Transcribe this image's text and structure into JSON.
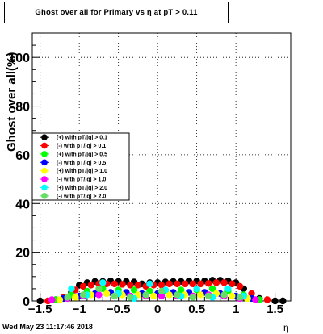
{
  "chart_data": {
    "type": "scatter",
    "title": "Ghost over all for Primary vs   η at pT > 0.11",
    "xlabel": "η",
    "ylabel": "Ghost over all(%)",
    "xlim": [
      -1.6,
      1.7
    ],
    "ylim": [
      0,
      110
    ],
    "grid": true,
    "legend_position": "left-middle",
    "x_ticks": [
      -1.5,
      -1,
      -0.5,
      0,
      0.5,
      1,
      1.5
    ],
    "x_tick_labels": [
      "−1.5",
      "−1",
      "−0.5",
      "0",
      "0.5",
      "1",
      "1.5"
    ],
    "y_ticks": [
      0,
      20,
      40,
      60,
      80,
      100
    ],
    "y_tick_labels": [
      "0",
      "20",
      "40",
      "60",
      "80",
      "100"
    ],
    "series": [
      {
        "name": "(+) with pT/|q| > 0.1",
        "color": "#000000",
        "marker": "circle",
        "x": [
          -1.5,
          -1.3,
          -1.1,
          -1.0,
          -0.9,
          -0.8,
          -0.7,
          -0.6,
          -0.5,
          -0.4,
          -0.3,
          -0.2,
          -0.1,
          0.0,
          0.1,
          0.2,
          0.3,
          0.4,
          0.5,
          0.6,
          0.7,
          0.8,
          0.9,
          1.0,
          1.1,
          1.3,
          1.5,
          1.6
        ],
        "y": [
          0,
          0.5,
          3.5,
          6.5,
          7.5,
          8,
          8,
          8.2,
          8,
          8,
          7.8,
          7,
          7.5,
          7.5,
          7.8,
          8,
          8,
          8.2,
          8.2,
          8.2,
          8.5,
          8.5,
          8.2,
          7.5,
          5,
          1,
          0,
          0
        ]
      },
      {
        "name": "(-) with pT/|q| > 0.1",
        "color": "#ff0000",
        "marker": "circle",
        "x": [
          -1.4,
          -1.2,
          -1.05,
          -0.95,
          -0.85,
          -0.75,
          -0.65,
          -0.55,
          -0.45,
          -0.35,
          -0.25,
          -0.15,
          -0.05,
          0.05,
          0.15,
          0.25,
          0.35,
          0.45,
          0.55,
          0.65,
          0.75,
          0.85,
          0.95,
          1.05,
          1.2,
          1.4
        ],
        "y": [
          0,
          1.5,
          4.5,
          6,
          6.5,
          7,
          7,
          7,
          6.8,
          6.5,
          6.5,
          6,
          6.5,
          6.5,
          7,
          7,
          7,
          7,
          7,
          7.2,
          7.5,
          7.5,
          7,
          6,
          3,
          0.5
        ]
      },
      {
        "name": "(+) with pT/|q| > 0.5",
        "color": "#00ff00",
        "marker": "circle",
        "x": [
          -1.3,
          -1.1,
          -0.9,
          -0.7,
          -0.5,
          -0.3,
          -0.1,
          0.1,
          0.3,
          0.5,
          0.7,
          0.9,
          1.1,
          1.3
        ],
        "y": [
          0.5,
          2.5,
          4,
          5,
          4.5,
          4.5,
          4,
          4,
          4.5,
          4.5,
          5,
          4,
          2.5,
          0.5
        ]
      },
      {
        "name": "(-) with pT/|q| > 0.5",
        "color": "#0000ff",
        "marker": "circle",
        "x": [
          -1.2,
          -1.0,
          -0.8,
          -0.6,
          -0.4,
          -0.2,
          0.0,
          0.2,
          0.4,
          0.6,
          0.8,
          1.0,
          1.2
        ],
        "y": [
          1,
          2,
          3,
          3.5,
          3.5,
          3,
          3,
          3.5,
          3.5,
          3.5,
          3,
          2,
          1
        ]
      },
      {
        "name": "(+) with pT/|q| > 1.0",
        "color": "#ffff00",
        "marker": "circle",
        "x": [
          -1.25,
          -1.05,
          -0.85,
          -0.65,
          -0.45,
          -0.25,
          -0.05,
          0.15,
          0.35,
          0.55,
          0.75,
          0.95,
          1.15
        ],
        "y": [
          0.5,
          1.5,
          2.5,
          3,
          2.5,
          2.5,
          2,
          2.5,
          2.5,
          2.5,
          3,
          2,
          1
        ]
      },
      {
        "name": "(-) with pT/|q| > 1.0",
        "color": "#ff00ff",
        "marker": "circle",
        "x": [
          -1.35,
          -1.15,
          -0.95,
          -0.75,
          -0.55,
          -0.35,
          -0.15,
          0.05,
          0.25,
          0.45,
          0.65,
          0.85,
          1.05,
          1.25
        ],
        "y": [
          0.5,
          1,
          2,
          2.5,
          2,
          2,
          2,
          2,
          2,
          2,
          2.5,
          2,
          1,
          0.5
        ]
      },
      {
        "name": "(+) with pT/|q| > 2.0",
        "color": "#00ffff",
        "marker": "circle",
        "x": [
          -1.1,
          -0.9,
          -0.7,
          -0.5,
          -0.3,
          -0.1,
          0.1,
          0.3,
          0.5,
          0.7,
          0.9,
          1.1
        ],
        "y": [
          5,
          2.5,
          7.5,
          3,
          1,
          7,
          4.5,
          2,
          5,
          1.5,
          5,
          2
        ]
      },
      {
        "name": "(-) with pT/|q| > 2.0",
        "color": "#66dd66",
        "marker": "circle",
        "x": [
          -1.15,
          -0.95,
          -0.75,
          -0.55,
          -0.35,
          -0.15,
          0.05,
          0.25,
          0.45,
          0.65,
          0.85,
          1.05
        ],
        "y": [
          1.5,
          2.5,
          5,
          2,
          1.5,
          2.5,
          4,
          2.5,
          1.5,
          2,
          2.5,
          1.5
        ]
      }
    ]
  },
  "footer": {
    "date": "Wed May 23 11:17:46 2018"
  }
}
